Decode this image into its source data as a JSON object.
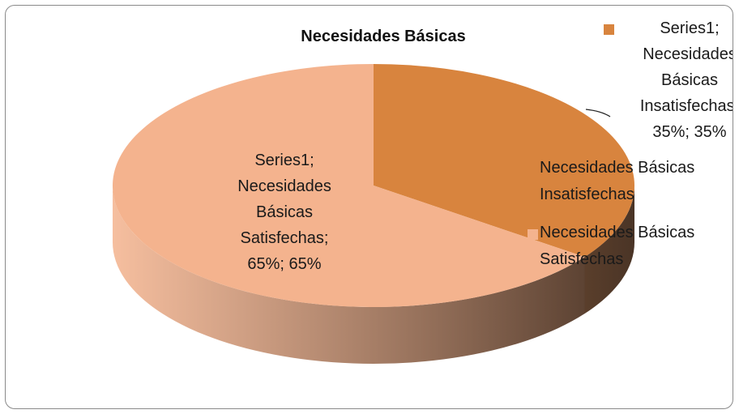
{
  "chart_data": {
    "type": "pie3d",
    "title": "Necesidades Básicas",
    "series_name": "Series1",
    "categories": [
      "Necesidades Básicas Insatisfechas",
      "Necesidades Básicas Satisfechas"
    ],
    "values": [
      35,
      65
    ],
    "value_labels": [
      "Series1; Necesidades Básicas Insatisfechas; 35%; 35%",
      "Series1; Necesidades Básicas Satisfechas; 65%; 65%"
    ],
    "colors": [
      "#d8843e",
      "#f4b38e"
    ],
    "legend": "right"
  }
}
